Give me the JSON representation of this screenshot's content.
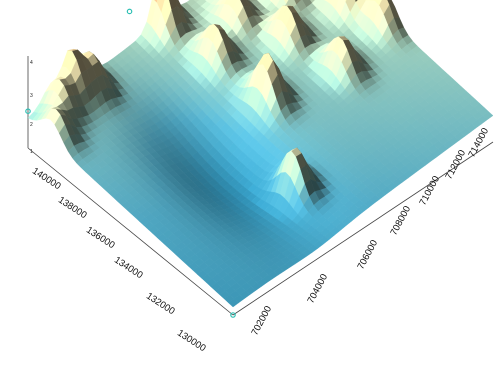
{
  "chart_data": {
    "type": "surface3d",
    "title": "",
    "xlabel": "",
    "ylabel": "",
    "zlabel": "",
    "x_ticks": [
      "702000",
      "704000",
      "706000",
      "708000",
      "710000",
      "712000",
      "714000"
    ],
    "y_ticks": [
      "130000",
      "132000",
      "134000",
      "136000",
      "138000",
      "140000"
    ],
    "z_ticks": [
      "1",
      "2",
      "3",
      "4"
    ],
    "xlim": [
      701000,
      714700
    ],
    "ylim": [
      130000,
      140700
    ],
    "zlim": [
      0,
      4
    ],
    "colormap": [
      "#2d8fb5",
      "#55b2cf",
      "#a8dcc8",
      "#eceab8",
      "#f1d9a3",
      "#c97a55"
    ],
    "marker_color": "#2fc0b4",
    "peaks": [
      {
        "x": 701300,
        "y": 139500,
        "z": 2.3
      },
      {
        "x": 702200,
        "y": 140200,
        "z": 2.6
      },
      {
        "x": 703200,
        "y": 140500,
        "z": 3.3
      },
      {
        "x": 703900,
        "y": 140300,
        "z": 2.8
      },
      {
        "x": 708000,
        "y": 140600,
        "z": 4.0
      },
      {
        "x": 711200,
        "y": 140500,
        "z": 3.4
      },
      {
        "x": 712600,
        "y": 138900,
        "z": 3.6
      },
      {
        "x": 712900,
        "y": 140200,
        "z": 3.2
      },
      {
        "x": 711200,
        "y": 137200,
        "z": 3.0
      },
      {
        "x": 711800,
        "y": 135000,
        "z": 2.8
      },
      {
        "x": 708700,
        "y": 135800,
        "z": 3.2
      },
      {
        "x": 708500,
        "y": 138300,
        "z": 2.9
      },
      {
        "x": 710300,
        "y": 139000,
        "z": 2.8
      },
      {
        "x": 713900,
        "y": 137000,
        "z": 3.3
      },
      {
        "x": 714400,
        "y": 135500,
        "z": 3.0
      },
      {
        "x": 706800,
        "y": 132500,
        "z": 2.4
      }
    ]
  }
}
